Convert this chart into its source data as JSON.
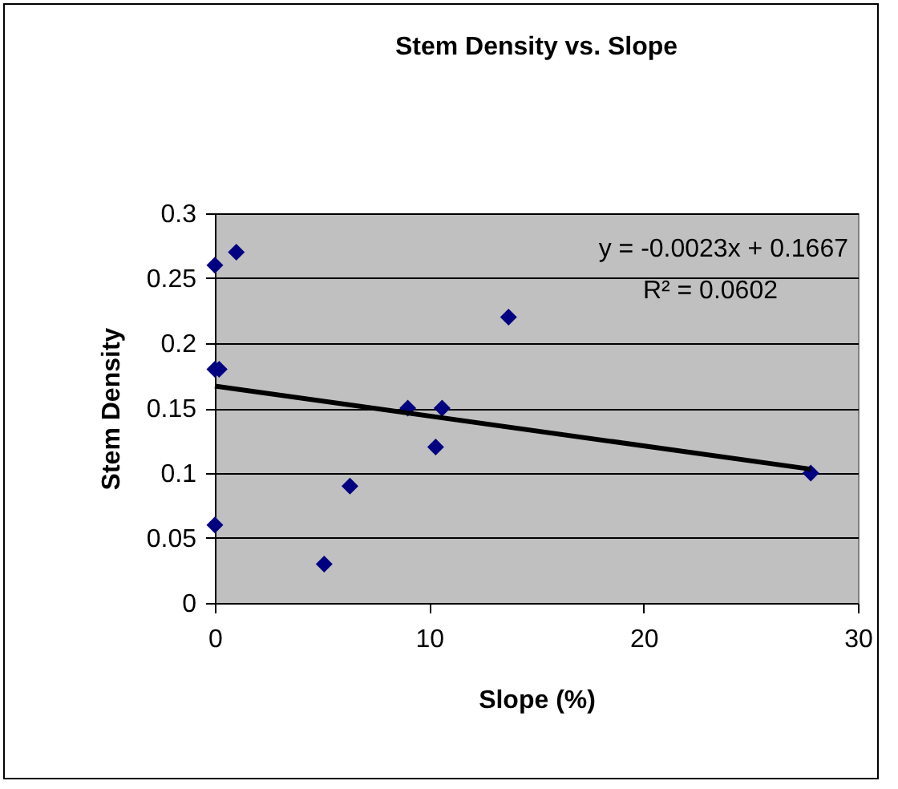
{
  "chart_data": {
    "type": "scatter",
    "title": "Stem Density vs. Slope",
    "xlabel": "Slope (%)",
    "ylabel": "Stem Density",
    "series": [
      {
        "color": "#000080",
        "marker": "diamond",
        "x": [
          0,
          1,
          0,
          0.2,
          5.1,
          6.3,
          9,
          10.6,
          10.3,
          13.7,
          27.8,
          0
        ],
        "values": [
          0.26,
          0.27,
          0.18,
          0.18,
          0.03,
          0.09,
          0.15,
          0.15,
          0.12,
          0.22,
          0.1,
          0.06
        ]
      },
      {
        "type": "line",
        "color": "#000000",
        "x": [
          0,
          27.8
        ],
        "values": [
          0.167,
          0.103
        ]
      }
    ],
    "annotations": [
      "y = -0.0023x + 0.1667",
      "R² = 0.0602"
    ],
    "xlim": [
      0,
      30
    ],
    "xticks": [
      0,
      10,
      20,
      30
    ],
    "ylim": [
      0,
      0.3
    ],
    "yticks": [
      0,
      0.05,
      0.1,
      0.15,
      0.2,
      0.25,
      0.3
    ],
    "grid": "y"
  }
}
